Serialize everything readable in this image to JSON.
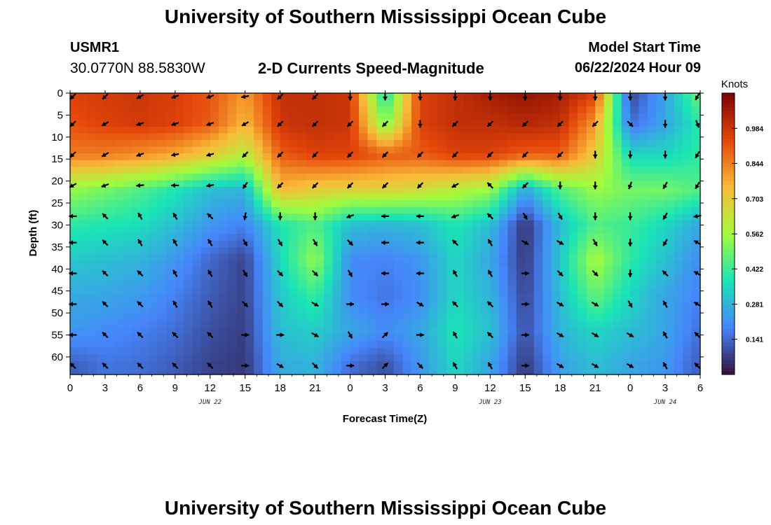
{
  "page": {
    "title_top": "University of Southern Mississippi Ocean Cube",
    "title_bottom": "University of Southern Mississippi Ocean Cube",
    "station_id": "USMR1",
    "station_coords": "30.0770N  88.5830W",
    "chart_title": "2-D Currents Speed-Magnitude",
    "model_start_label": "Model Start Time",
    "model_start_value": "06/22/2024 Hour 09"
  },
  "colors": {
    "colormap": [
      "#30123b",
      "#4686fb",
      "#1ae4b6",
      "#a2fc3c",
      "#faba39",
      "#e4460a",
      "#7a0403"
    ],
    "arrow": "#000000"
  },
  "chart_data": {
    "type": "heatmap",
    "title": "2-D Currents Speed-Magnitude",
    "xlabel": "Forecast Time(Z)",
    "ylabel": "Depth (ft)",
    "x_tick_labels": [
      "0",
      "3",
      "6",
      "9",
      "12",
      "15",
      "18",
      "21",
      "0",
      "3",
      "6",
      "9",
      "12",
      "15",
      "18",
      "21",
      "0",
      "3",
      "6"
    ],
    "x_hours": [
      0,
      3,
      6,
      9,
      12,
      15,
      18,
      21,
      24,
      27,
      30,
      33,
      36,
      39,
      42,
      45,
      48,
      51,
      54
    ],
    "xlim": [
      0,
      54
    ],
    "date_labels": [
      {
        "text": "JUN 22",
        "hour": 12
      },
      {
        "text": "JUN 23",
        "hour": 36
      },
      {
        "text": "JUN 24",
        "hour": 51
      }
    ],
    "y_ticks": [
      0,
      5,
      10,
      15,
      20,
      25,
      30,
      35,
      40,
      45,
      50,
      55,
      60
    ],
    "ylim": [
      0,
      64
    ],
    "colorbar_unit": "Knots",
    "colorbar_ticks": [
      0.141,
      0.281,
      0.422,
      0.562,
      0.703,
      0.844,
      0.984
    ],
    "value_range": [
      0.0,
      1.125
    ],
    "speed_depths": [
      0,
      7,
      14,
      22,
      30,
      38,
      46,
      54,
      62
    ],
    "speed_hours": [
      0,
      3,
      6,
      9,
      12,
      15,
      18,
      21,
      24,
      27,
      30,
      33,
      36,
      39,
      42,
      45,
      48,
      51,
      54
    ],
    "speed_knots": [
      [
        0.95,
        0.97,
        0.98,
        0.96,
        0.92,
        0.8,
        1.0,
        1.0,
        0.98,
        0.35,
        0.95,
        1.0,
        1.05,
        1.08,
        1.05,
        0.95,
        0.08,
        0.25,
        0.5
      ],
      [
        0.92,
        0.95,
        0.97,
        0.95,
        0.9,
        0.75,
        0.98,
        1.0,
        0.98,
        0.5,
        0.95,
        1.0,
        1.0,
        1.02,
        1.0,
        0.8,
        0.15,
        0.25,
        0.4
      ],
      [
        0.85,
        0.85,
        0.82,
        0.78,
        0.7,
        0.6,
        0.9,
        0.95,
        0.95,
        0.9,
        0.9,
        0.95,
        0.95,
        0.9,
        0.9,
        0.7,
        0.35,
        0.35,
        0.4
      ],
      [
        0.55,
        0.5,
        0.45,
        0.38,
        0.3,
        0.28,
        0.75,
        0.7,
        0.68,
        0.68,
        0.65,
        0.6,
        0.55,
        0.25,
        0.45,
        0.55,
        0.5,
        0.5,
        0.45
      ],
      [
        0.4,
        0.38,
        0.36,
        0.3,
        0.22,
        0.18,
        0.38,
        0.45,
        0.3,
        0.28,
        0.3,
        0.38,
        0.3,
        0.05,
        0.3,
        0.45,
        0.42,
        0.35,
        0.25
      ],
      [
        0.32,
        0.3,
        0.28,
        0.22,
        0.14,
        0.08,
        0.35,
        0.55,
        0.2,
        0.18,
        0.22,
        0.35,
        0.25,
        0.06,
        0.32,
        0.58,
        0.4,
        0.3,
        0.2
      ],
      [
        0.26,
        0.25,
        0.23,
        0.18,
        0.12,
        0.08,
        0.32,
        0.42,
        0.2,
        0.16,
        0.2,
        0.35,
        0.28,
        0.08,
        0.3,
        0.48,
        0.35,
        0.25,
        0.18
      ],
      [
        0.22,
        0.2,
        0.18,
        0.15,
        0.1,
        0.07,
        0.3,
        0.33,
        0.25,
        0.2,
        0.25,
        0.38,
        0.3,
        0.1,
        0.28,
        0.35,
        0.3,
        0.25,
        0.15
      ],
      [
        0.12,
        0.16,
        0.15,
        0.12,
        0.08,
        0.06,
        0.26,
        0.28,
        0.15,
        0.1,
        0.22,
        0.35,
        0.25,
        0.06,
        0.24,
        0.3,
        0.25,
        0.22,
        0.12
      ]
    ],
    "arrow_depths": [
      0,
      7,
      14,
      21,
      28,
      34,
      41,
      48,
      55,
      62
    ],
    "arrow_hours": [
      0,
      3,
      6,
      9,
      12,
      15,
      18,
      21,
      24,
      27,
      30,
      33,
      36,
      39,
      42,
      45,
      48,
      51,
      54
    ],
    "arrow_direction_deg": [
      [
        225,
        225,
        240,
        250,
        250,
        260,
        225,
        225,
        180,
        180,
        180,
        180,
        180,
        180,
        180,
        180,
        180,
        180,
        210
      ],
      [
        225,
        240,
        250,
        250,
        250,
        240,
        225,
        225,
        225,
        225,
        180,
        225,
        225,
        225,
        225,
        225,
        135,
        180,
        160
      ],
      [
        225,
        240,
        250,
        260,
        255,
        225,
        225,
        225,
        225,
        225,
        225,
        225,
        225,
        225,
        225,
        180,
        180,
        180,
        210
      ],
      [
        240,
        250,
        265,
        270,
        260,
        215,
        225,
        225,
        225,
        225,
        225,
        240,
        315,
        225,
        180,
        180,
        200,
        210,
        210
      ],
      [
        270,
        315,
        330,
        330,
        315,
        190,
        180,
        180,
        250,
        270,
        270,
        250,
        315,
        150,
        150,
        180,
        180,
        210,
        260
      ],
      [
        270,
        315,
        330,
        330,
        330,
        150,
        150,
        150,
        135,
        270,
        270,
        315,
        330,
        120,
        120,
        150,
        180,
        210,
        300
      ],
      [
        270,
        315,
        315,
        330,
        330,
        150,
        135,
        135,
        150,
        270,
        270,
        330,
        330,
        90,
        135,
        135,
        180,
        315,
        300
      ],
      [
        270,
        315,
        315,
        330,
        330,
        135,
        135,
        120,
        90,
        90,
        120,
        315,
        315,
        90,
        120,
        120,
        150,
        330,
        300
      ],
      [
        270,
        315,
        315,
        315,
        315,
        90,
        90,
        120,
        150,
        45,
        90,
        330,
        315,
        90,
        120,
        120,
        120,
        330,
        315
      ],
      [
        315,
        315,
        315,
        315,
        315,
        90,
        120,
        135,
        90,
        45,
        135,
        330,
        330,
        90,
        120,
        120,
        120,
        330,
        315
      ]
    ]
  }
}
